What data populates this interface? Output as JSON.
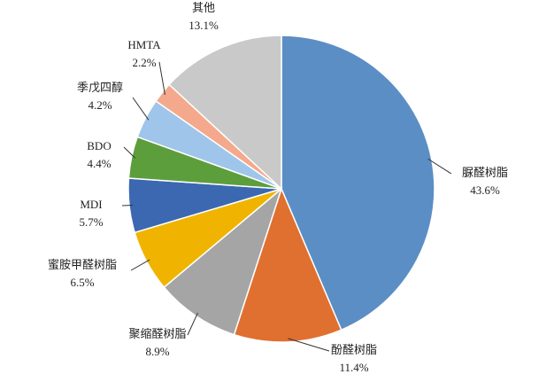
{
  "chart_data": {
    "type": "pie",
    "categories": [
      "脲醛树脂",
      "酚醛树脂",
      "聚缩醛树脂",
      "蜜胺甲醛树脂",
      "MDI",
      "BDO",
      "季戊四醇",
      "HMTA",
      "其他"
    ],
    "values": [
      43.6,
      11.4,
      8.9,
      6.5,
      5.7,
      4.4,
      4.2,
      2.2,
      13.1
    ],
    "value_labels": [
      "43.6%",
      "11.4%",
      "8.9%",
      "6.5%",
      "5.7%",
      "4.4%",
      "4.2%",
      "2.2%",
      "13.1%"
    ],
    "colors": [
      "#5b8ec4",
      "#e07030",
      "#a5a5a5",
      "#f0b400",
      "#3c68b2",
      "#5d9e3c",
      "#9fc5ea",
      "#f4a98c",
      "#c9c9c9"
    ]
  }
}
